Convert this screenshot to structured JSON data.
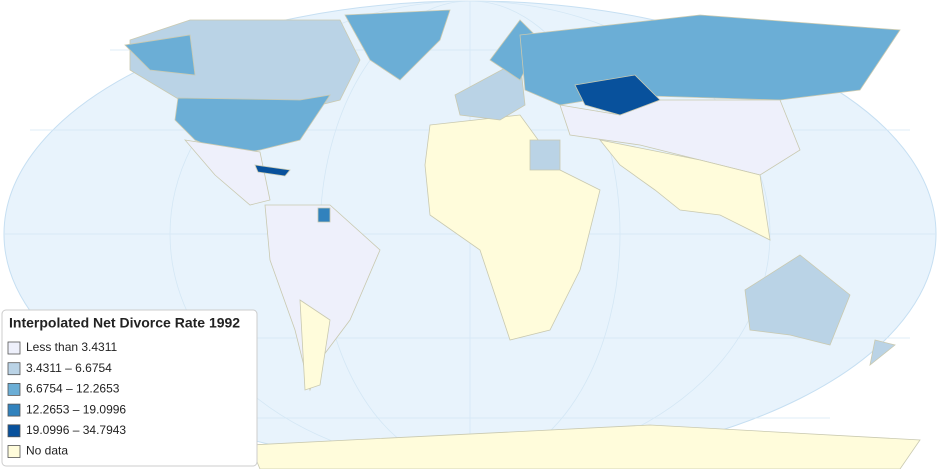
{
  "legend": {
    "title": "Interpolated Net Divorce Rate 1992",
    "items": [
      {
        "label": "Less than 3.4311",
        "color": "#eef0fb"
      },
      {
        "label": "3.4311 – 6.6754",
        "color": "#bad3e6"
      },
      {
        "label": "6.6754 – 12.2653",
        "color": "#6baed6"
      },
      {
        "label": "12.2653 – 19.0996",
        "color": "#3182bd"
      },
      {
        "label": "19.0996 – 34.7943",
        "color": "#08519c"
      },
      {
        "label": "No data",
        "color": "#fffcdb"
      }
    ]
  }
}
